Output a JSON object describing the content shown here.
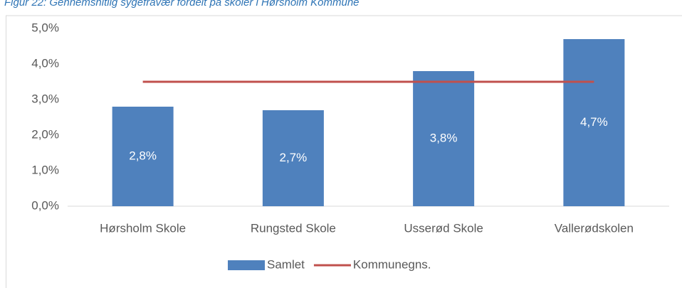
{
  "chart_data": {
    "type": "bar",
    "title": "Figur 22: Gennemsnitlig sygefravær fordelt på skoler i Hørsholm Kommune",
    "categories": [
      "Hørsholm Skole",
      "Rungsted Skole",
      "Usserød Skole",
      "Vallerødskolen"
    ],
    "series": [
      {
        "name": "Samlet",
        "type": "bar",
        "color": "#4f81bd",
        "values": [
          2.8,
          2.7,
          3.8,
          4.7
        ],
        "value_labels": [
          "2,8%",
          "2,7%",
          "3,8%",
          "4,7%"
        ]
      },
      {
        "name": "Kommunegns.",
        "type": "line",
        "color": "#c0504d",
        "values": [
          3.5,
          3.5,
          3.5,
          3.5
        ]
      }
    ],
    "ylim": [
      0,
      5
    ],
    "yticks": [
      {
        "value": 0,
        "label": "0,0%"
      },
      {
        "value": 1,
        "label": "1,0%"
      },
      {
        "value": 2,
        "label": "2,0%"
      },
      {
        "value": 3,
        "label": "3,0%"
      },
      {
        "value": 4,
        "label": "4,0%"
      },
      {
        "value": 5,
        "label": "5,0%"
      }
    ],
    "legend": "bottom"
  }
}
